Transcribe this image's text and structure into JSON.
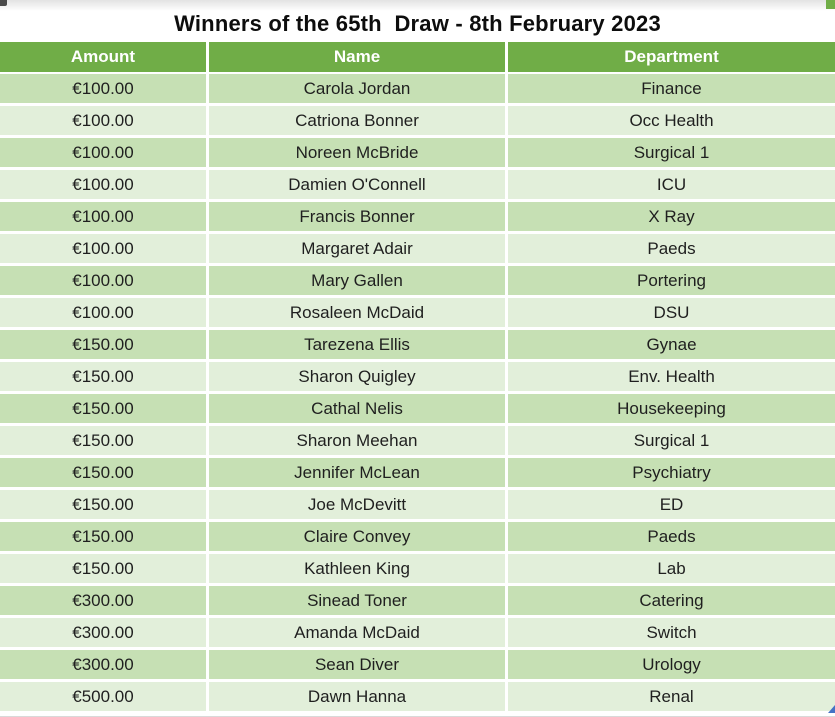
{
  "title": "Winners of the 65th  Draw - 8th February 2023",
  "table": {
    "columns": [
      "Amount",
      "Name",
      "Department"
    ],
    "rows": [
      [
        "€100.00",
        "Carola Jordan",
        "Finance"
      ],
      [
        "€100.00",
        "Catriona Bonner",
        "Occ Health"
      ],
      [
        "€100.00",
        "Noreen McBride",
        "Surgical 1"
      ],
      [
        "€100.00",
        "Damien O'Connell",
        "ICU"
      ],
      [
        "€100.00",
        "Francis Bonner",
        "X Ray"
      ],
      [
        "€100.00",
        "Margaret Adair",
        "Paeds"
      ],
      [
        "€100.00",
        "Mary Gallen",
        "Portering"
      ],
      [
        "€100.00",
        "Rosaleen McDaid",
        "DSU"
      ],
      [
        "€150.00",
        "Tarezena Ellis",
        "Gynae"
      ],
      [
        "€150.00",
        "Sharon Quigley",
        "Env. Health"
      ],
      [
        "€150.00",
        "Cathal Nelis",
        "Housekeeping"
      ],
      [
        "€150.00",
        "Sharon Meehan",
        "Surgical 1"
      ],
      [
        "€150.00",
        "Jennifer McLean",
        "Psychiatry"
      ],
      [
        "€150.00",
        "Joe McDevitt",
        "ED"
      ],
      [
        "€150.00",
        "Claire Convey",
        "Paeds"
      ],
      [
        "€150.00",
        "Kathleen King",
        "Lab"
      ],
      [
        "€300.00",
        "Sinead Toner",
        "Catering"
      ],
      [
        "€300.00",
        "Amanda McDaid",
        "Switch"
      ],
      [
        "€300.00",
        "Sean Diver",
        "Urology"
      ],
      [
        "€500.00",
        "Dawn Hanna",
        "Renal"
      ]
    ]
  },
  "colors": {
    "header_bg": "#70AD47",
    "row_odd_bg": "#C6E0B4",
    "row_even_bg": "#E2EFDA",
    "header_text": "#FFFFFF",
    "body_text": "#1F1F1F",
    "artifact_blue": "#4472C4"
  }
}
